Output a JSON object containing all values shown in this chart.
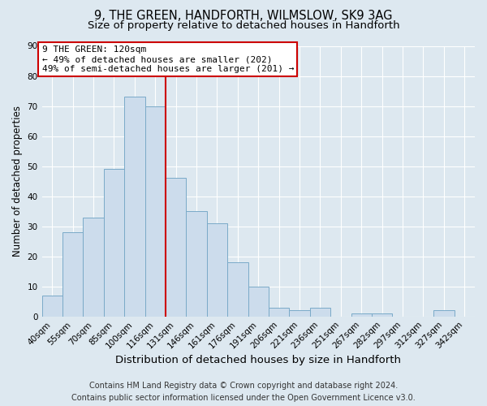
{
  "title": "9, THE GREEN, HANDFORTH, WILMSLOW, SK9 3AG",
  "subtitle": "Size of property relative to detached houses in Handforth",
  "bar_labels": [
    "40sqm",
    "55sqm",
    "70sqm",
    "85sqm",
    "100sqm",
    "116sqm",
    "131sqm",
    "146sqm",
    "161sqm",
    "176sqm",
    "191sqm",
    "206sqm",
    "221sqm",
    "236sqm",
    "251sqm",
    "267sqm",
    "282sqm",
    "297sqm",
    "312sqm",
    "327sqm",
    "342sqm"
  ],
  "bar_values": [
    7,
    28,
    33,
    49,
    73,
    70,
    46,
    35,
    31,
    18,
    10,
    3,
    2,
    3,
    0,
    1,
    1,
    0,
    0,
    2,
    0
  ],
  "bar_color": "#ccdcec",
  "bar_edge_color": "#7aaac8",
  "vline_x": 5.5,
  "vline_color": "#cc0000",
  "ylim": [
    0,
    90
  ],
  "yticks": [
    0,
    10,
    20,
    30,
    40,
    50,
    60,
    70,
    80,
    90
  ],
  "xlabel": "Distribution of detached houses by size in Handforth",
  "ylabel": "Number of detached properties",
  "annotation_title": "9 THE GREEN: 120sqm",
  "annotation_line1": "← 49% of detached houses are smaller (202)",
  "annotation_line2": "49% of semi-detached houses are larger (201) →",
  "annotation_box_facecolor": "#ffffff",
  "annotation_box_edgecolor": "#cc0000",
  "footer_line1": "Contains HM Land Registry data © Crown copyright and database right 2024.",
  "footer_line2": "Contains public sector information licensed under the Open Government Licence v3.0.",
  "background_color": "#dde8f0",
  "plot_background_color": "#dde8f0",
  "title_fontsize": 10.5,
  "subtitle_fontsize": 9.5,
  "xlabel_fontsize": 9.5,
  "ylabel_fontsize": 8.5,
  "tick_fontsize": 7.5,
  "annotation_fontsize": 8.0,
  "footer_fontsize": 7.0
}
